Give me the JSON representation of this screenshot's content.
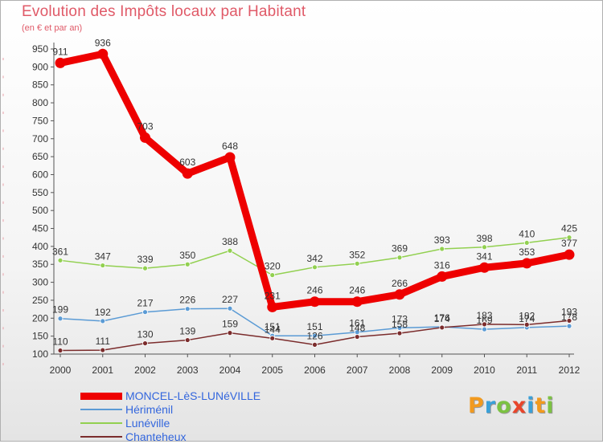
{
  "title": "Evolution des Impôts locaux par Habitant",
  "subtitle": "(en € et par an)",
  "logo": {
    "text": "Proxiti",
    "colors": [
      "#f29a1e",
      "#3aa0d8",
      "#7cc242",
      "#e8452b",
      "#3aa0d8",
      "#f29a1e",
      "#7cc242"
    ]
  },
  "chart_data": {
    "type": "line",
    "x": [
      "2000",
      "2001",
      "2002",
      "2003",
      "2004",
      "2005",
      "2006",
      "2007",
      "2008",
      "2009",
      "2010",
      "2011",
      "2012"
    ],
    "ylim": [
      100,
      950
    ],
    "yticks": [
      100,
      150,
      200,
      250,
      300,
      350,
      400,
      450,
      500,
      550,
      600,
      650,
      700,
      750,
      800,
      850,
      900,
      950
    ],
    "grid": false,
    "legend_position": "bottom-left",
    "series": [
      {
        "name": "MONCEL-LèS-LUNéVILLE",
        "color": "#ee0000",
        "width": 9,
        "values": [
          911,
          936,
          703,
          603,
          648,
          231,
          246,
          246,
          266,
          316,
          341,
          353,
          377
        ]
      },
      {
        "name": "Hériménil",
        "color": "#5b9bd5",
        "width": 1.5,
        "values": [
          199,
          192,
          217,
          226,
          227,
          151,
          151,
          161,
          173,
          176,
          169,
          174,
          178
        ]
      },
      {
        "name": "Lunéville",
        "color": "#92d050",
        "width": 1.5,
        "values": [
          361,
          347,
          339,
          350,
          388,
          320,
          342,
          352,
          369,
          393,
          398,
          410,
          425
        ]
      },
      {
        "name": "Chanteheux",
        "color": "#7b2c2c",
        "width": 1.5,
        "values": [
          110,
          111,
          130,
          139,
          159,
          144,
          126,
          148,
          158,
          174,
          183,
          182,
          193
        ]
      }
    ]
  }
}
